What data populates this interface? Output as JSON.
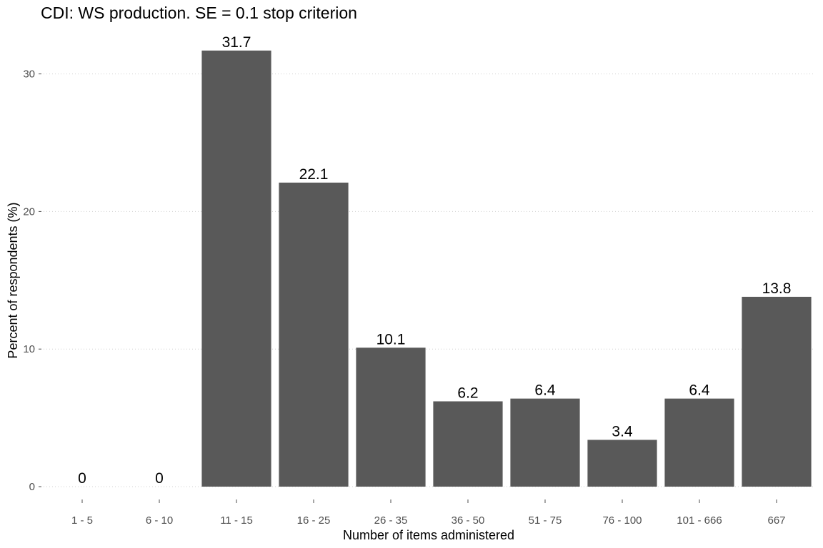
{
  "chart_data": {
    "type": "bar",
    "title": "CDI: WS production. SE = 0.1 stop criterion",
    "xlabel": "Number of items administered",
    "ylabel": "Percent of respondents (%)",
    "categories": [
      "1 - 5",
      "6 - 10",
      "11 - 15",
      "16 - 25",
      "26 - 35",
      "36 - 50",
      "51 - 75",
      "76 - 100",
      "101 - 666",
      "667"
    ],
    "values": [
      0,
      0,
      31.7,
      22.1,
      10.1,
      6.2,
      6.4,
      3.4,
      6.4,
      13.8
    ],
    "data_labels": [
      "0",
      "0",
      "31.7",
      "22.1",
      "10.1",
      "6.2",
      "6.4",
      "3.4",
      "6.4",
      "13.8"
    ],
    "yticks": [
      0,
      10,
      20,
      30
    ],
    "ylim": [
      0,
      32
    ],
    "grid": "horizontal dotted",
    "bar_color": "#595959"
  }
}
